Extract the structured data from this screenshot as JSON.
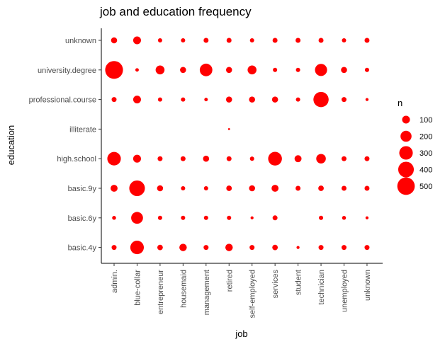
{
  "chart_data": {
    "type": "scatter",
    "title": "job and education frequency",
    "xlabel": "job",
    "ylabel": "education",
    "x_categories": [
      "admin.",
      "blue-collar",
      "entrepreneur",
      "housemaid",
      "management",
      "retired",
      "self-employed",
      "services",
      "student",
      "technician",
      "unemployed",
      "unknown"
    ],
    "y_categories": [
      "basic.4y",
      "basic.6y",
      "basic.9y",
      "high.school",
      "illiterate",
      "professional.course",
      "university.degree",
      "unknown"
    ],
    "size_variable": "n",
    "legend": {
      "title": "n",
      "values": [
        100,
        200,
        300,
        400,
        500
      ],
      "placement": "right"
    },
    "point_color": "#ff0000",
    "grid": false,
    "points": [
      {
        "x": "admin.",
        "y": "basic.4y",
        "n": 40
      },
      {
        "x": "blue-collar",
        "y": "basic.4y",
        "n": 300
      },
      {
        "x": "entrepreneur",
        "y": "basic.4y",
        "n": 50
      },
      {
        "x": "housemaid",
        "y": "basic.4y",
        "n": 90
      },
      {
        "x": "management",
        "y": "basic.4y",
        "n": 40
      },
      {
        "x": "retired",
        "y": "basic.4y",
        "n": 90
      },
      {
        "x": "self-employed",
        "y": "basic.4y",
        "n": 40
      },
      {
        "x": "services",
        "y": "basic.4y",
        "n": 50
      },
      {
        "x": "student",
        "y": "basic.4y",
        "n": 15
      },
      {
        "x": "technician",
        "y": "basic.4y",
        "n": 40
      },
      {
        "x": "unemployed",
        "y": "basic.4y",
        "n": 40
      },
      {
        "x": "unknown",
        "y": "basic.4y",
        "n": 40
      },
      {
        "x": "admin.",
        "y": "basic.6y",
        "n": 25
      },
      {
        "x": "blue-collar",
        "y": "basic.6y",
        "n": 230
      },
      {
        "x": "entrepreneur",
        "y": "basic.6y",
        "n": 30
      },
      {
        "x": "housemaid",
        "y": "basic.6y",
        "n": 30
      },
      {
        "x": "management",
        "y": "basic.6y",
        "n": 30
      },
      {
        "x": "retired",
        "y": "basic.6y",
        "n": 30
      },
      {
        "x": "self-employed",
        "y": "basic.6y",
        "n": 15
      },
      {
        "x": "services",
        "y": "basic.6y",
        "n": 40
      },
      {
        "x": "technician",
        "y": "basic.6y",
        "n": 30
      },
      {
        "x": "unemployed",
        "y": "basic.6y",
        "n": 25
      },
      {
        "x": "unknown",
        "y": "basic.6y",
        "n": 15
      },
      {
        "x": "admin.",
        "y": "basic.9y",
        "n": 80
      },
      {
        "x": "blue-collar",
        "y": "basic.9y",
        "n": 400
      },
      {
        "x": "entrepreneur",
        "y": "basic.9y",
        "n": 60
      },
      {
        "x": "housemaid",
        "y": "basic.9y",
        "n": 30
      },
      {
        "x": "management",
        "y": "basic.9y",
        "n": 30
      },
      {
        "x": "retired",
        "y": "basic.9y",
        "n": 50
      },
      {
        "x": "self-employed",
        "y": "basic.9y",
        "n": 60
      },
      {
        "x": "services",
        "y": "basic.9y",
        "n": 80
      },
      {
        "x": "student",
        "y": "basic.9y",
        "n": 40
      },
      {
        "x": "technician",
        "y": "basic.9y",
        "n": 50
      },
      {
        "x": "unemployed",
        "y": "basic.9y",
        "n": 40
      },
      {
        "x": "unknown",
        "y": "basic.9y",
        "n": 40
      },
      {
        "x": "admin.",
        "y": "high.school",
        "n": 300
      },
      {
        "x": "blue-collar",
        "y": "high.school",
        "n": 100
      },
      {
        "x": "entrepreneur",
        "y": "high.school",
        "n": 40
      },
      {
        "x": "housemaid",
        "y": "high.school",
        "n": 40
      },
      {
        "x": "management",
        "y": "high.school",
        "n": 60
      },
      {
        "x": "retired",
        "y": "high.school",
        "n": 40
      },
      {
        "x": "self-employed",
        "y": "high.school",
        "n": 30
      },
      {
        "x": "services",
        "y": "high.school",
        "n": 310
      },
      {
        "x": "student",
        "y": "high.school",
        "n": 80
      },
      {
        "x": "technician",
        "y": "high.school",
        "n": 150
      },
      {
        "x": "unemployed",
        "y": "high.school",
        "n": 40
      },
      {
        "x": "unknown",
        "y": "high.school",
        "n": 40
      },
      {
        "x": "retired",
        "y": "illiterate",
        "n": 3
      },
      {
        "x": "admin.",
        "y": "professional.course",
        "n": 40
      },
      {
        "x": "blue-collar",
        "y": "professional.course",
        "n": 100
      },
      {
        "x": "entrepreneur",
        "y": "professional.course",
        "n": 30
      },
      {
        "x": "housemaid",
        "y": "professional.course",
        "n": 30
      },
      {
        "x": "management",
        "y": "professional.course",
        "n": 20
      },
      {
        "x": "retired",
        "y": "professional.course",
        "n": 60
      },
      {
        "x": "self-employed",
        "y": "professional.course",
        "n": 60
      },
      {
        "x": "services",
        "y": "professional.course",
        "n": 60
      },
      {
        "x": "student",
        "y": "professional.course",
        "n": 30
      },
      {
        "x": "technician",
        "y": "professional.course",
        "n": 380
      },
      {
        "x": "unemployed",
        "y": "professional.course",
        "n": 40
      },
      {
        "x": "unknown",
        "y": "professional.course",
        "n": 15
      },
      {
        "x": "admin.",
        "y": "university.degree",
        "n": 520
      },
      {
        "x": "blue-collar",
        "y": "university.degree",
        "n": 20
      },
      {
        "x": "entrepreneur",
        "y": "university.degree",
        "n": 130
      },
      {
        "x": "housemaid",
        "y": "university.degree",
        "n": 60
      },
      {
        "x": "management",
        "y": "university.degree",
        "n": 260
      },
      {
        "x": "retired",
        "y": "university.degree",
        "n": 60
      },
      {
        "x": "self-employed",
        "y": "university.degree",
        "n": 130
      },
      {
        "x": "services",
        "y": "university.degree",
        "n": 30
      },
      {
        "x": "student",
        "y": "university.degree",
        "n": 30
      },
      {
        "x": "technician",
        "y": "university.degree",
        "n": 240
      },
      {
        "x": "unemployed",
        "y": "university.degree",
        "n": 60
      },
      {
        "x": "unknown",
        "y": "university.degree",
        "n": 30
      },
      {
        "x": "admin.",
        "y": "unknown",
        "n": 60
      },
      {
        "x": "blue-collar",
        "y": "unknown",
        "n": 100
      },
      {
        "x": "entrepreneur",
        "y": "unknown",
        "n": 30
      },
      {
        "x": "housemaid",
        "y": "unknown",
        "n": 30
      },
      {
        "x": "management",
        "y": "unknown",
        "n": 40
      },
      {
        "x": "retired",
        "y": "unknown",
        "n": 40
      },
      {
        "x": "self-employed",
        "y": "unknown",
        "n": 30
      },
      {
        "x": "services",
        "y": "unknown",
        "n": 40
      },
      {
        "x": "student",
        "y": "unknown",
        "n": 40
      },
      {
        "x": "technician",
        "y": "unknown",
        "n": 40
      },
      {
        "x": "unemployed",
        "y": "unknown",
        "n": 30
      },
      {
        "x": "unknown",
        "y": "unknown",
        "n": 40
      }
    ]
  }
}
